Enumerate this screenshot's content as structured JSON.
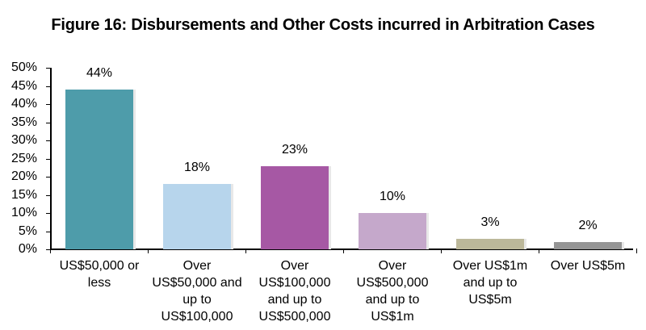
{
  "chart_data": {
    "type": "bar",
    "title": "Figure 16: Disbursements and Other Costs incurred in Arbitration Cases",
    "xlabel": "",
    "ylabel": "",
    "ylim": [
      0,
      50
    ],
    "yticks": [
      "0%",
      "5%",
      "10%",
      "15%",
      "20%",
      "25%",
      "30%",
      "35%",
      "40%",
      "45%",
      "50%"
    ],
    "grid": false,
    "legend": null,
    "categories": [
      "US$50,000 or less",
      "Over US$50,000 and up to US$100,000",
      "Over US$100,000 and up to US$500,000",
      "Over US$500,000 and up to US$1m",
      "Over US$1m and up to US$5m",
      "Over US$5m"
    ],
    "category_lines": [
      [
        "US$50,000 or",
        "less"
      ],
      [
        "Over",
        "US$50,000 and",
        "up to",
        "US$100,000"
      ],
      [
        "Over",
        "US$100,000",
        "and up to",
        "US$500,000"
      ],
      [
        "Over",
        "US$500,000",
        "and up to",
        "US$1m"
      ],
      [
        "Over US$1m",
        "and up to",
        "US$5m"
      ],
      [
        "Over US$5m"
      ]
    ],
    "values": [
      44,
      18,
      23,
      10,
      3,
      2
    ],
    "data_labels": [
      "44%",
      "18%",
      "23%",
      "10%",
      "3%",
      "2%"
    ],
    "colors": [
      "#4e9caa",
      "#b7d5ec",
      "#a658a4",
      "#c5a8cb",
      "#bcb89a",
      "#959595"
    ]
  }
}
